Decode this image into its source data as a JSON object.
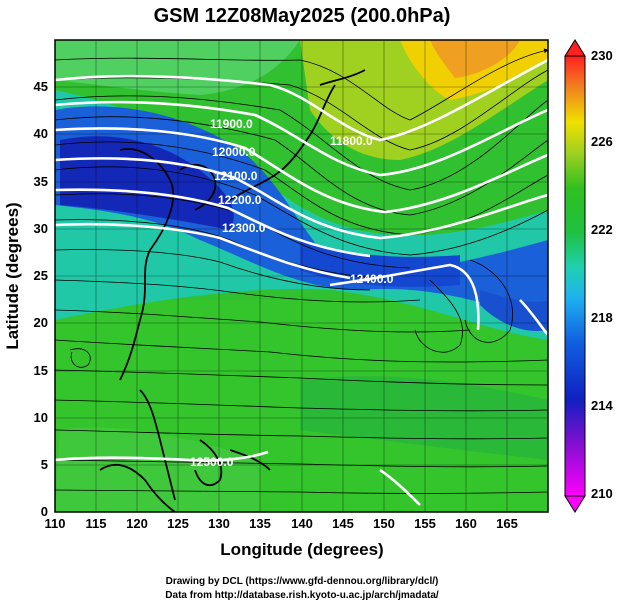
{
  "title": "GSM 12Z08May2025 (200.0hPa)",
  "xaxis": {
    "label": "Longitude (degrees)",
    "range": [
      110,
      170
    ],
    "ticks": [
      "110",
      "115",
      "120",
      "125",
      "130",
      "135",
      "140",
      "145",
      "150",
      "155",
      "160",
      "165"
    ]
  },
  "yaxis": {
    "label": "Latitude  (degrees)",
    "range": [
      0,
      50
    ],
    "ticks": [
      "0",
      "5",
      "10",
      "15",
      "20",
      "25",
      "30",
      "35",
      "40",
      "45"
    ]
  },
  "colorbar": {
    "range": [
      210,
      230
    ],
    "ticks": [
      "210",
      "214",
      "218",
      "222",
      "226",
      "230"
    ]
  },
  "contour_labels": [
    "11800.0",
    "11900.0",
    "12000.0",
    "12100.0",
    "12200.0",
    "12300.0",
    "12400.0",
    "12500.0"
  ],
  "footer": {
    "line1": "Drawing by DCL (https://www.gfd-dennou.org/library/dcl/)",
    "line2": "Data from http://database.rish.kyoto-u.ac.jp/arch/jmadata/"
  },
  "colors": {
    "low": "#ff00ff",
    "blue": "#1020c0",
    "cyan": "#20b0f0",
    "green": "#20c020",
    "yellow": "#f0e000",
    "high": "#ff0000",
    "contour": "#ffffff"
  }
}
